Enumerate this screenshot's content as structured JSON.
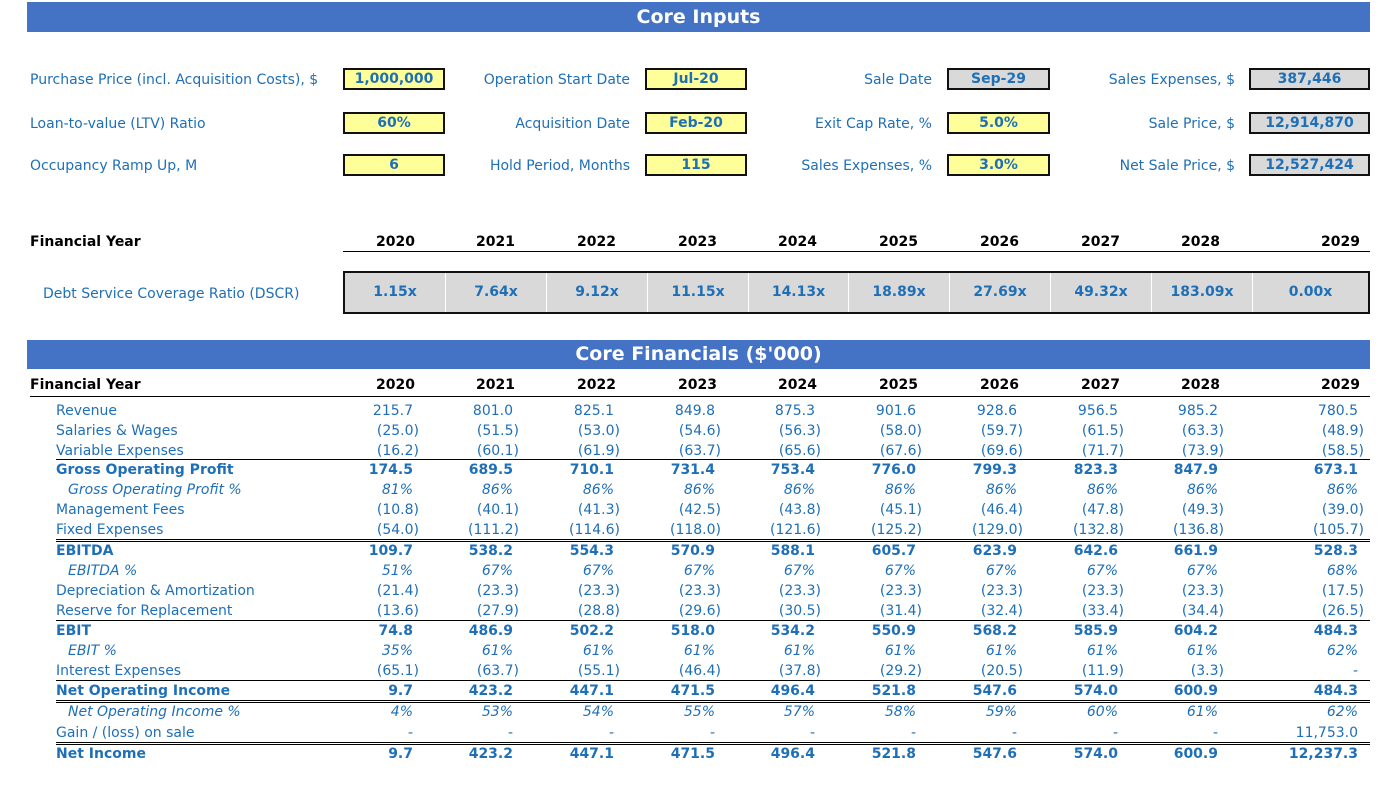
{
  "inputs_title": "Core Inputs",
  "inputs": {
    "purchase_price_label": "Purchase Price (incl. Acquisition Costs), $",
    "purchase_price": "1,000,000",
    "ltv_label": "Loan-to-value (LTV) Ratio",
    "ltv": "60%",
    "ramp_label": "Occupancy Ramp Up, M",
    "ramp": "6",
    "op_start_label": "Operation Start Date",
    "op_start": "Jul-20",
    "acq_date_label": "Acquisition Date",
    "acq_date": "Feb-20",
    "hold_label": "Hold Period, Months",
    "hold": "115",
    "sale_date_label": "Sale Date",
    "sale_date": "Sep-29",
    "exit_cap_label": "Exit Cap Rate, %",
    "exit_cap": "5.0%",
    "sales_exp_pct_label": "Sales Expenses, %",
    "sales_exp_pct": "3.0%",
    "sales_exp_label": "Sales Expenses, $",
    "sales_exp": "387,446",
    "sale_price_label": "Sale Price, $",
    "sale_price": "12,914,870",
    "net_sale_price_label": "Net Sale Price, $",
    "net_sale_price": "12,527,424"
  },
  "years_label": "Financial Year",
  "years": [
    "2020",
    "2021",
    "2022",
    "2023",
    "2024",
    "2025",
    "2026",
    "2027",
    "2028",
    "2029"
  ],
  "dscr_label": "Debt Service Coverage Ratio (DSCR)",
  "dscr": [
    "1.15x",
    "7.64x",
    "9.12x",
    "11.15x",
    "14.13x",
    "18.89x",
    "27.69x",
    "49.32x",
    "183.09x",
    "0.00x"
  ],
  "financials_title": "Core Financials ($'000)",
  "rows": [
    {
      "label": "Revenue",
      "style": "n",
      "values": [
        "215.7",
        "801.0",
        "825.1",
        "849.8",
        "875.3",
        "901.6",
        "928.6",
        "956.5",
        "985.2",
        "780.5"
      ]
    },
    {
      "label": "Salaries & Wages",
      "style": "n",
      "values": [
        "(25.0)",
        "(51.5)",
        "(53.0)",
        "(54.6)",
        "(56.3)",
        "(58.0)",
        "(59.7)",
        "(61.5)",
        "(63.3)",
        "(48.9)"
      ]
    },
    {
      "label": "Variable Expenses",
      "style": "n",
      "values": [
        "(16.2)",
        "(60.1)",
        "(61.9)",
        "(63.7)",
        "(65.6)",
        "(67.6)",
        "(69.6)",
        "(71.7)",
        "(73.9)",
        "(58.5)"
      ]
    },
    {
      "label": "Gross Operating Profit",
      "style": "b",
      "values": [
        "174.5",
        "689.5",
        "710.1",
        "731.4",
        "753.4",
        "776.0",
        "799.3",
        "823.3",
        "847.9",
        "673.1"
      ]
    },
    {
      "label": "Gross Operating Profit %",
      "style": "i",
      "values": [
        "81%",
        "86%",
        "86%",
        "86%",
        "86%",
        "86%",
        "86%",
        "86%",
        "86%",
        "86%"
      ]
    },
    {
      "label": "Management Fees",
      "style": "n",
      "values": [
        "(10.8)",
        "(40.1)",
        "(41.3)",
        "(42.5)",
        "(43.8)",
        "(45.1)",
        "(46.4)",
        "(47.8)",
        "(49.3)",
        "(39.0)"
      ]
    },
    {
      "label": "Fixed Expenses",
      "style": "n",
      "values": [
        "(54.0)",
        "(111.2)",
        "(114.6)",
        "(118.0)",
        "(121.6)",
        "(125.2)",
        "(129.0)",
        "(132.8)",
        "(136.8)",
        "(105.7)"
      ]
    },
    {
      "label": "EBITDA",
      "style": "b",
      "values": [
        "109.7",
        "538.2",
        "554.3",
        "570.9",
        "588.1",
        "605.7",
        "623.9",
        "642.6",
        "661.9",
        "528.3"
      ]
    },
    {
      "label": "EBITDA %",
      "style": "i",
      "values": [
        "51%",
        "67%",
        "67%",
        "67%",
        "67%",
        "67%",
        "67%",
        "67%",
        "67%",
        "68%"
      ]
    },
    {
      "label": "Depreciation & Amortization",
      "style": "n",
      "values": [
        "(21.4)",
        "(23.3)",
        "(23.3)",
        "(23.3)",
        "(23.3)",
        "(23.3)",
        "(23.3)",
        "(23.3)",
        "(23.3)",
        "(17.5)"
      ]
    },
    {
      "label": "Reserve for Replacement",
      "style": "n",
      "values": [
        "(13.6)",
        "(27.9)",
        "(28.8)",
        "(29.6)",
        "(30.5)",
        "(31.4)",
        "(32.4)",
        "(33.4)",
        "(34.4)",
        "(26.5)"
      ]
    },
    {
      "label": "EBIT",
      "style": "b",
      "values": [
        "74.8",
        "486.9",
        "502.2",
        "518.0",
        "534.2",
        "550.9",
        "568.2",
        "585.9",
        "604.2",
        "484.3"
      ]
    },
    {
      "label": "EBIT %",
      "style": "i",
      "values": [
        "35%",
        "61%",
        "61%",
        "61%",
        "61%",
        "61%",
        "61%",
        "61%",
        "61%",
        "62%"
      ]
    },
    {
      "label": "Interest Expenses",
      "style": "n",
      "values": [
        "(65.1)",
        "(63.7)",
        "(55.1)",
        "(46.4)",
        "(37.8)",
        "(29.2)",
        "(20.5)",
        "(11.9)",
        "(3.3)",
        "-"
      ]
    },
    {
      "label": "Net Operating Income",
      "style": "b",
      "values": [
        "9.7",
        "423.2",
        "447.1",
        "471.5",
        "496.4",
        "521.8",
        "547.6",
        "574.0",
        "600.9",
        "484.3"
      ]
    },
    {
      "label": "Net Operating Income %",
      "style": "i",
      "values": [
        "4%",
        "53%",
        "54%",
        "55%",
        "57%",
        "58%",
        "59%",
        "60%",
        "61%",
        "62%"
      ]
    },
    {
      "label": "Gain / (loss) on sale",
      "style": "n",
      "values": [
        "-",
        "-",
        "-",
        "-",
        "-",
        "-",
        "-",
        "-",
        "-",
        "11,753.0"
      ]
    },
    {
      "label": "Net Income",
      "style": "b",
      "values": [
        "9.7",
        "423.2",
        "447.1",
        "471.5",
        "496.4",
        "521.8",
        "547.6",
        "574.0",
        "600.9",
        "12,237.3"
      ]
    }
  ]
}
